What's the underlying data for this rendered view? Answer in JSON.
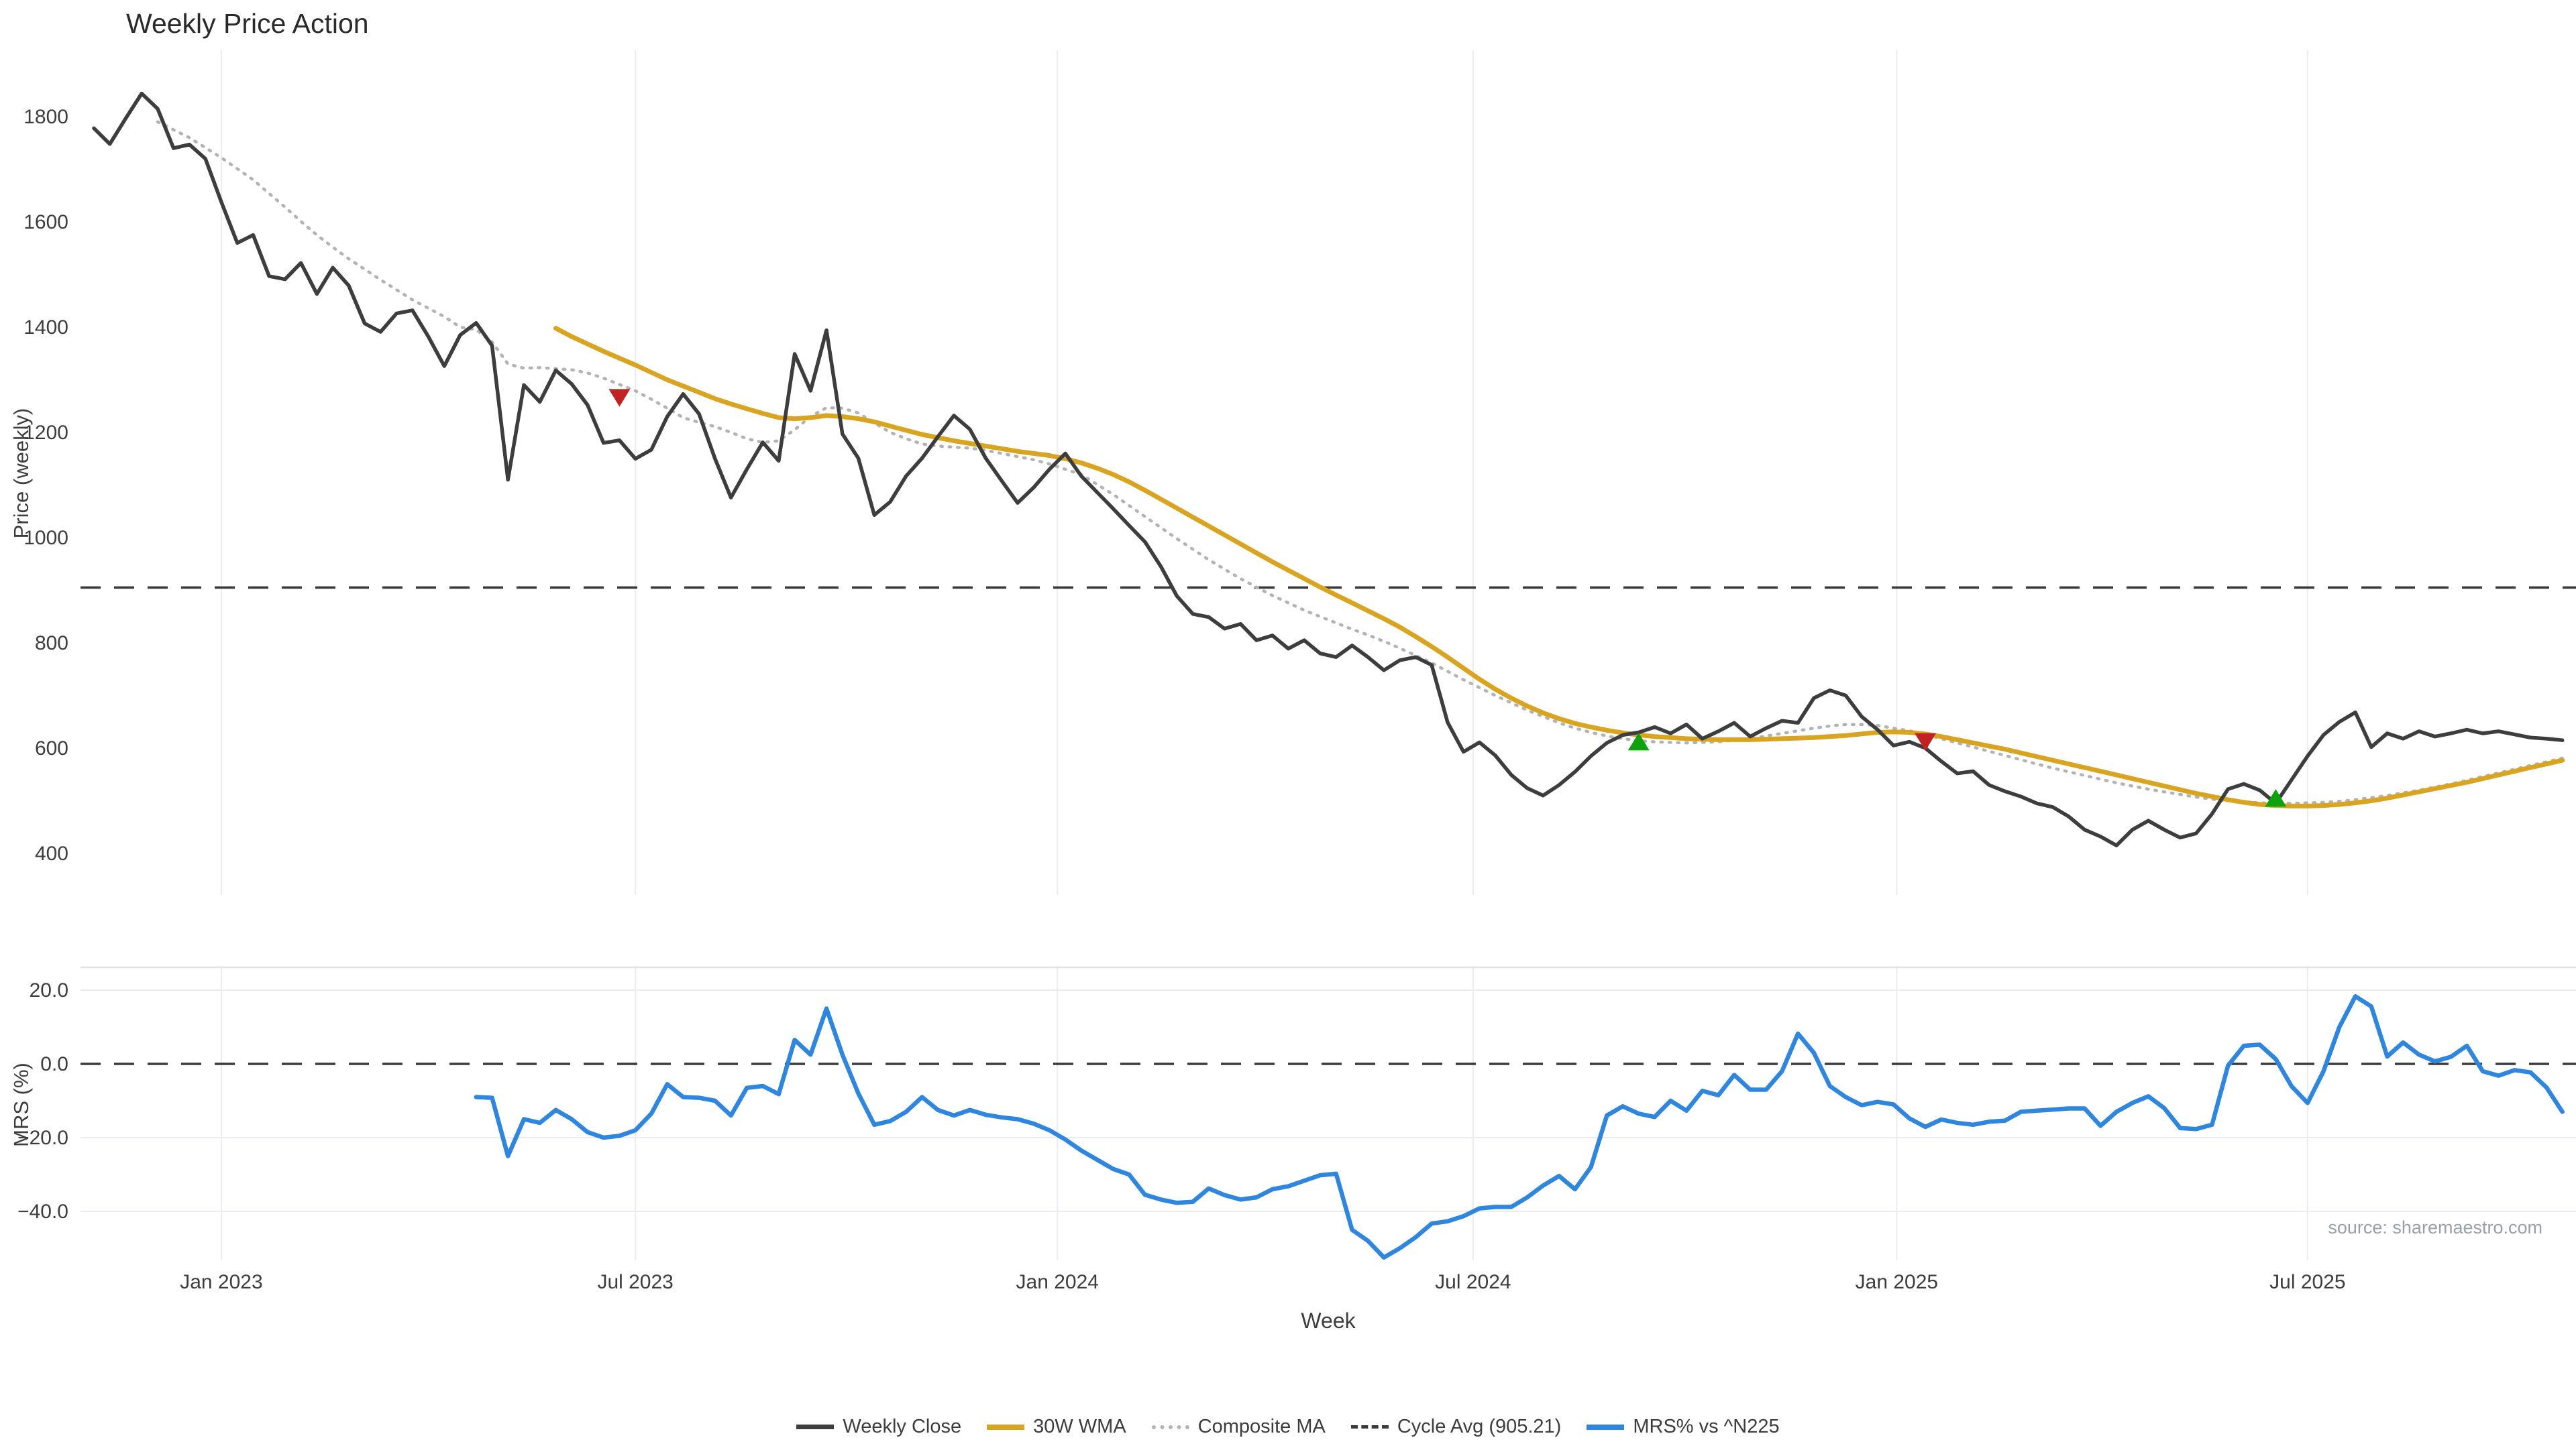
{
  "title": "Weekly Price Action",
  "source_note": "source: sharemaestro.com",
  "axes": {
    "x": {
      "label": "Week",
      "ticks": [
        {
          "label": "Jan 2023",
          "week": 8
        },
        {
          "label": "Jul 2023",
          "week": 34
        },
        {
          "label": "Jan 2024",
          "week": 60.5
        },
        {
          "label": "Jul 2024",
          "week": 86.6
        },
        {
          "label": "Jan 2025",
          "week": 113.2
        },
        {
          "label": "Jul 2025",
          "week": 139
        }
      ]
    },
    "price": {
      "label": "Price (weekly)",
      "ticks": [
        400,
        600,
        800,
        1000,
        1200,
        1400,
        1600,
        1800
      ],
      "range": [
        321,
        1926
      ]
    },
    "mrs": {
      "label": "MRS (%)",
      "ticks": [
        {
          "value": 20,
          "label": "20.0"
        },
        {
          "value": 0,
          "label": "0.0"
        },
        {
          "value": -20,
          "label": "−20.0"
        },
        {
          "value": -40,
          "label": "−40.0"
        }
      ],
      "range": [
        -54,
        26.5
      ]
    }
  },
  "legend": {
    "items": [
      {
        "label": "Weekly Close",
        "color": "#3d3d3d",
        "style": "solid",
        "thickness": 7
      },
      {
        "label": "30W WMA",
        "color": "#d9a521",
        "style": "solid",
        "thickness": 8
      },
      {
        "label": "Composite MA",
        "color": "#b3b3b3",
        "style": "dotted",
        "thickness": 6
      },
      {
        "label": "Cycle Avg (905.21)",
        "color": "#3a3a3a",
        "style": "dashed",
        "thickness": 5
      },
      {
        "label": "MRS% vs ^N225",
        "color": "#2e86de",
        "style": "solid",
        "thickness": 8
      }
    ]
  },
  "colors": {
    "close": "#3d3d3d",
    "wma": "#d9a521",
    "composite": "#b3b3b3",
    "cycle": "#3a3a3a",
    "mrs": "#2e86de",
    "grid": "#ebebf2",
    "panel_border": "#e2e2e8",
    "tick": "#3d3d3d",
    "source": "#9aa0a6",
    "buy": "#0ea30e",
    "sell": "#c32222"
  },
  "chart_data": {
    "type": "line",
    "x_unit": "week_index",
    "cycle_avg": 905.21,
    "panels": [
      {
        "name": "price",
        "ylabel": "Price (weekly)",
        "series": [
          {
            "name": "Weekly Close",
            "start_week": 0,
            "values": [
              1778,
              1748,
              1797,
              1844,
              1815,
              1740,
              1747,
              1720,
              1638,
              1560,
              1575,
              1497,
              1491,
              1522,
              1463,
              1513,
              1479,
              1407,
              1391,
              1426,
              1432,
              1382,
              1326,
              1385,
              1408,
              1365,
              1110,
              1290,
              1258,
              1318,
              1292,
              1252,
              1180,
              1185,
              1150,
              1167,
              1230,
              1273,
              1235,
              1150,
              1076,
              1130,
              1181,
              1146,
              1349,
              1279,
              1394,
              1197,
              1151,
              1043,
              1068,
              1117,
              1151,
              1192,
              1232,
              1206,
              1151,
              1108,
              1066,
              1095,
              1130,
              1160,
              1117,
              1086,
              1055,
              1023,
              992,
              945,
              889,
              855,
              849,
              827,
              836,
              805,
              814,
              789,
              805,
              780,
              773,
              795,
              773,
              748,
              767,
              773,
              758,
              649,
              593,
              611,
              586,
              549,
              524,
              510,
              530,
              555,
              585,
              610,
              625,
              630,
              640,
              628,
              645,
              618,
              632,
              648,
              622,
              638,
              652,
              648,
              695,
              710,
              700,
              660,
              635,
              605,
              612,
              600,
              575,
              552,
              556,
              530,
              518,
              508,
              495,
              488,
              470,
              445,
              432,
              415,
              445,
              462,
              445,
              430,
              438,
              475,
              522,
              532,
              520,
              495,
              540,
              585,
              625,
              650,
              668,
              602,
              628,
              618,
              632,
              622,
              628,
              635,
              628,
              632,
              626,
              620,
              618,
              615
            ]
          },
          {
            "name": "30W WMA",
            "start_week": 29,
            "values": [
              1398,
              1382,
              1368,
              1354,
              1341,
              1328,
              1314,
              1300,
              1288,
              1276,
              1264,
              1254,
              1245,
              1236,
              1228,
              1226,
              1228,
              1232,
              1230,
              1226,
              1220,
              1212,
              1204,
              1196,
              1190,
              1184,
              1179,
              1174,
              1169,
              1164,
              1160,
              1156,
              1150,
              1142,
              1132,
              1120,
              1106,
              1090,
              1073,
              1056,
              1039,
              1022,
              1005,
              988,
              971,
              954,
              938,
              922,
              906,
              891,
              876,
              861,
              846,
              830,
              812,
              793,
              773,
              752,
              731,
              712,
              695,
              680,
              667,
              656,
              647,
              640,
              634,
              629,
              625,
              622,
              620,
              618,
              617,
              616,
              616,
              616,
              617,
              618,
              619,
              620,
              622,
              624,
              627,
              630,
              631,
              630,
              627,
              622,
              616,
              610,
              604,
              598,
              591,
              584,
              577,
              570,
              563,
              556,
              549,
              542,
              535,
              528,
              521,
              514,
              508,
              502,
              497,
              493,
              491,
              490,
              490,
              491,
              493,
              496,
              500,
              505,
              511,
              517,
              523,
              529,
              535,
              542,
              549,
              556,
              563,
              570,
              577
            ]
          },
          {
            "name": "Composite MA",
            "start_week": 4,
            "values": [
              1790,
              1775,
              1760,
              1741,
              1722,
              1701,
              1680,
              1654,
              1628,
              1601,
              1575,
              1552,
              1530,
              1510,
              1490,
              1471,
              1452,
              1436,
              1420,
              1400,
              1395,
              1372,
              1330,
              1322,
              1323,
              1321,
              1319,
              1313,
              1303,
              1291,
              1279,
              1263,
              1246,
              1228,
              1219,
              1211,
              1200,
              1188,
              1181,
              1184,
              1205,
              1230,
              1247,
              1246,
              1237,
              1218,
              1200,
              1188,
              1178,
              1174,
              1172,
              1170,
              1166,
              1160,
              1154,
              1148,
              1140,
              1130,
              1120,
              1101,
              1082,
              1061,
              1040,
              1019,
              998,
              978,
              958,
              940,
              922,
              906,
              890,
              876,
              862,
              850,
              838,
              826,
              815,
              803,
              790,
              776,
              762,
              746,
              730,
              715,
              700,
              686,
              672,
              660,
              648,
              638,
              630,
              623,
              618,
              614,
              612,
              611,
              610,
              611,
              612,
              615,
              618,
              623,
              628,
              633,
              638,
              642,
              645,
              645,
              643,
              638,
              633,
              626,
              618,
              610,
              602,
              594,
              586,
              578,
              570,
              562,
              555,
              548,
              541,
              534,
              528,
              522,
              517,
              512,
              507,
              503,
              500,
              498,
              496,
              495,
              495,
              496,
              497,
              499,
              502,
              506,
              510,
              515,
              520,
              526,
              532,
              539,
              546,
              553,
              560,
              567,
              574,
              581
            ]
          }
        ],
        "markers": [
          {
            "type": "sell",
            "week": 33,
            "price": 1268
          },
          {
            "type": "buy",
            "week": 97,
            "price": 610
          },
          {
            "type": "sell",
            "week": 115,
            "price": 614
          },
          {
            "type": "buy",
            "week": 137,
            "price": 503
          }
        ],
        "ref_line": {
          "name": "Cycle Avg",
          "value": 905.21
        }
      },
      {
        "name": "mrs",
        "ylabel": "MRS (%)",
        "series": [
          {
            "name": "MRS% vs ^N225",
            "start_week": 24,
            "values": [
              -9,
              -9.2,
              -25,
              -15,
              -16,
              -12.5,
              -15,
              -18.5,
              -20,
              -19.5,
              -18,
              -13.5,
              -5.5,
              -9,
              -9.2,
              -10,
              -14,
              -6.5,
              -6,
              -8.2,
              6.5,
              2.5,
              15,
              2.5,
              -8,
              -16.5,
              -15.5,
              -13,
              -9,
              -12.5,
              -14,
              -12.5,
              -13.8,
              -14.5,
              -15,
              -16.2,
              -18,
              -20.5,
              -23.5,
              -26,
              -28.5,
              -30,
              -35.5,
              -36.8,
              -37.7,
              -37.4,
              -33.8,
              -35.6,
              -36.8,
              -36.2,
              -34,
              -33.2,
              -31.7,
              -30.2,
              -29.8,
              -45,
              -48,
              -52.5,
              -50,
              -47,
              -43.3,
              -42.7,
              -41.3,
              -39.2,
              -38.8,
              -38.8,
              -36.2,
              -33,
              -30.4,
              -34,
              -28,
              -14,
              -11.5,
              -13.5,
              -14.4,
              -10,
              -12.7,
              -7.3,
              -8.5,
              -3,
              -7,
              -7,
              -2,
              8.2,
              3,
              -6,
              -9,
              -11.2,
              -10.3,
              -11,
              -14.8,
              -17.1,
              -15.1,
              -16,
              -16.5,
              -15.7,
              -15.4,
              -13,
              -12.7,
              -12.4,
              -12.1,
              -12.1,
              -16.8,
              -13,
              -10.6,
              -8.8,
              -12,
              -17.4,
              -17.7,
              -16.5,
              -0.5,
              4.9,
              5.2,
              1.3,
              -6.1,
              -10.6,
              -2,
              10,
              18.3,
              15.6,
              2,
              5.8,
              2.5,
              0.7,
              1.9,
              4.9,
              -2,
              -3.2,
              -1.7,
              -2.3,
              -6.4,
              -13
            ]
          }
        ],
        "ref_line": {
          "name": "zero",
          "value": 0
        }
      }
    ]
  }
}
